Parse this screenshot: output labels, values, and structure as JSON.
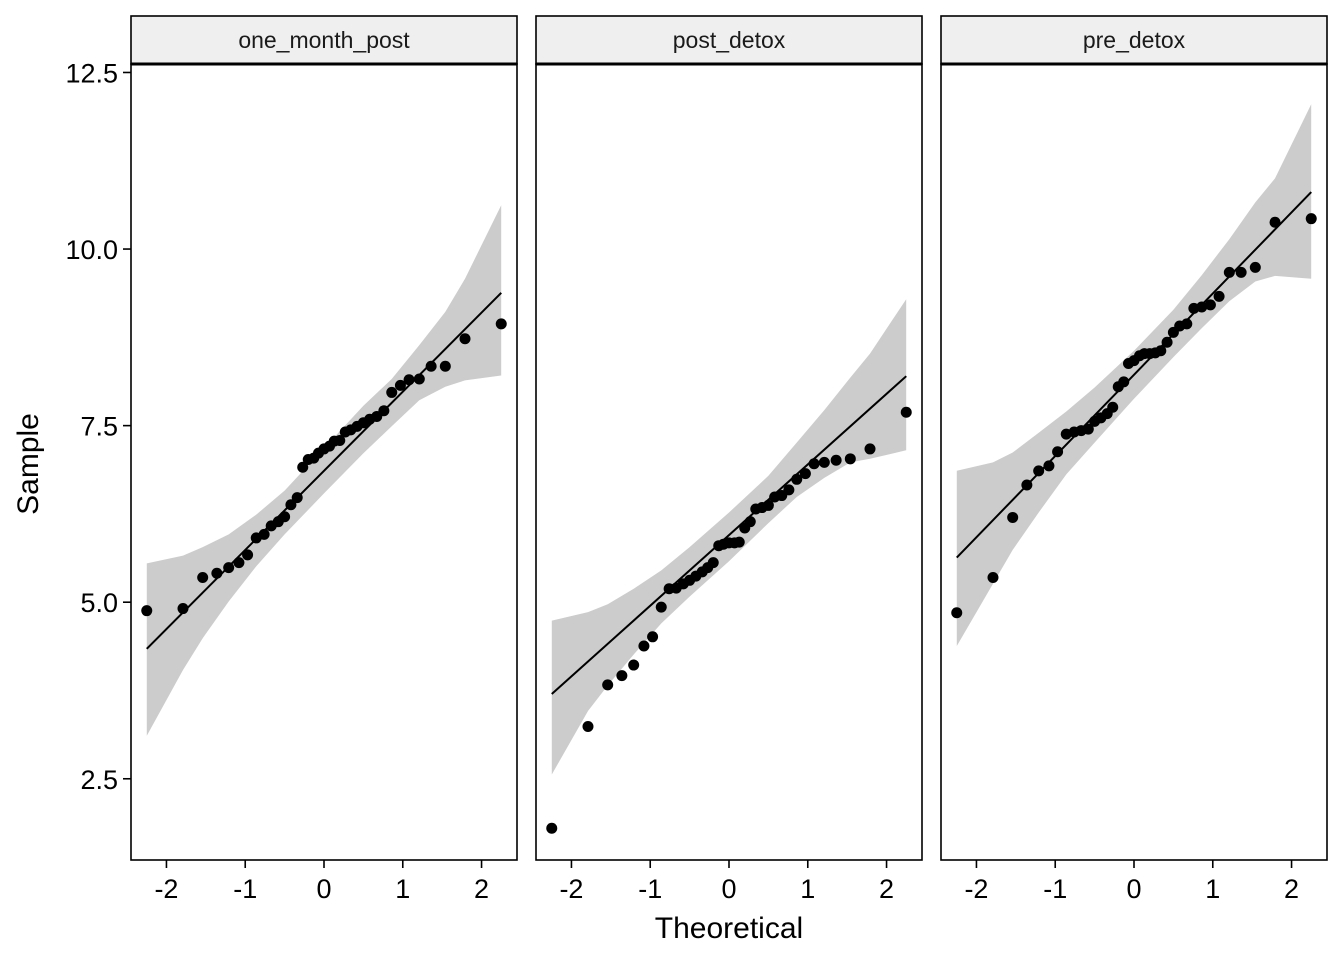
{
  "chart_data": {
    "type": "scatter",
    "kind": "qq-plot",
    "xlabel": "Theoretical",
    "ylabel": "Sample",
    "xlim": [
      -2.45,
      2.45
    ],
    "ylim": [
      1.35,
      12.62
    ],
    "x_ticks": [
      -2,
      -1,
      0,
      1,
      2
    ],
    "x_tick_labels": [
      "-2",
      "-1",
      "0",
      "1",
      "2"
    ],
    "y_ticks": [
      2.5,
      5.0,
      7.5,
      10.0,
      12.5
    ],
    "y_tick_labels": [
      "2.5",
      "5.0",
      "7.5",
      "10.0",
      "12.5"
    ],
    "grid": false,
    "colors": {
      "points": "#000000",
      "line": "#000000",
      "band": "#cccccc",
      "strip": "#efefef"
    },
    "panels": [
      {
        "name": "one_month_post",
        "points": [
          [
            -2.25,
            4.88
          ],
          [
            -1.79,
            4.91
          ],
          [
            -1.54,
            5.35
          ],
          [
            -1.36,
            5.41
          ],
          [
            -1.21,
            5.49
          ],
          [
            -1.08,
            5.56
          ],
          [
            -0.97,
            5.67
          ],
          [
            -0.86,
            5.91
          ],
          [
            -0.76,
            5.96
          ],
          [
            -0.67,
            6.08
          ],
          [
            -0.58,
            6.14
          ],
          [
            -0.5,
            6.21
          ],
          [
            -0.42,
            6.38
          ],
          [
            -0.34,
            6.48
          ],
          [
            -0.27,
            6.91
          ],
          [
            -0.2,
            7.02
          ],
          [
            -0.13,
            7.04
          ],
          [
            -0.07,
            7.11
          ],
          [
            0.0,
            7.17
          ],
          [
            0.07,
            7.21
          ],
          [
            0.13,
            7.28
          ],
          [
            0.2,
            7.29
          ],
          [
            0.27,
            7.41
          ],
          [
            0.34,
            7.44
          ],
          [
            0.42,
            7.49
          ],
          [
            0.5,
            7.54
          ],
          [
            0.58,
            7.59
          ],
          [
            0.67,
            7.63
          ],
          [
            0.76,
            7.71
          ],
          [
            0.86,
            7.97
          ],
          [
            0.97,
            8.07
          ],
          [
            1.08,
            8.15
          ],
          [
            1.21,
            8.16
          ],
          [
            1.36,
            8.34
          ],
          [
            1.54,
            8.34
          ],
          [
            1.79,
            8.73
          ],
          [
            2.25,
            8.94
          ]
        ],
        "line": {
          "intercept": 6.86,
          "slope": 1.12
        },
        "band": {
          "x": [
            -2.25,
            -1.79,
            -1.54,
            -1.21,
            -0.86,
            -0.5,
            0,
            0.5,
            0.86,
            1.21,
            1.54,
            1.79,
            2.25
          ],
          "lower": [
            3.11,
            4.04,
            4.49,
            5.01,
            5.51,
            5.96,
            6.54,
            7.11,
            7.49,
            7.86,
            8.05,
            8.14,
            8.21
          ],
          "upper": [
            5.55,
            5.66,
            5.78,
            5.96,
            6.24,
            6.58,
            7.18,
            7.78,
            8.16,
            8.64,
            9.11,
            9.58,
            10.62
          ]
        }
      },
      {
        "name": "post_detox",
        "points": [
          [
            -2.25,
            1.8
          ],
          [
            -1.79,
            3.24
          ],
          [
            -1.54,
            3.83
          ],
          [
            -1.36,
            3.96
          ],
          [
            -1.21,
            4.11
          ],
          [
            -1.08,
            4.38
          ],
          [
            -0.97,
            4.51
          ],
          [
            -0.86,
            4.93
          ],
          [
            -0.76,
            5.19
          ],
          [
            -0.67,
            5.2
          ],
          [
            -0.58,
            5.26
          ],
          [
            -0.5,
            5.31
          ],
          [
            -0.42,
            5.37
          ],
          [
            -0.34,
            5.43
          ],
          [
            -0.27,
            5.49
          ],
          [
            -0.2,
            5.56
          ],
          [
            -0.13,
            5.8
          ],
          [
            -0.07,
            5.82
          ],
          [
            0.0,
            5.84
          ],
          [
            0.07,
            5.84
          ],
          [
            0.13,
            5.85
          ],
          [
            0.2,
            6.05
          ],
          [
            0.27,
            6.14
          ],
          [
            0.34,
            6.32
          ],
          [
            0.42,
            6.34
          ],
          [
            0.5,
            6.37
          ],
          [
            0.58,
            6.49
          ],
          [
            0.67,
            6.51
          ],
          [
            0.76,
            6.59
          ],
          [
            0.86,
            6.74
          ],
          [
            0.97,
            6.82
          ],
          [
            1.08,
            6.96
          ],
          [
            1.21,
            6.98
          ],
          [
            1.36,
            7.01
          ],
          [
            1.54,
            7.03
          ],
          [
            1.79,
            7.17
          ],
          [
            2.25,
            7.69
          ]
        ],
        "line": {
          "intercept": 5.95,
          "slope": 1.0
        },
        "band": {
          "x": [
            -2.25,
            -1.79,
            -1.54,
            -1.21,
            -0.86,
            -0.5,
            0,
            0.5,
            0.86,
            1.21,
            1.54,
            1.79,
            2.25
          ],
          "lower": [
            2.56,
            3.46,
            3.82,
            4.26,
            4.7,
            5.08,
            5.58,
            6.12,
            6.49,
            6.76,
            6.98,
            7.03,
            7.15
          ],
          "upper": [
            4.74,
            4.86,
            4.97,
            5.19,
            5.45,
            5.78,
            6.27,
            6.79,
            7.26,
            7.72,
            8.18,
            8.52,
            9.29
          ]
        }
      },
      {
        "name": "pre_detox",
        "points": [
          [
            -2.25,
            4.85
          ],
          [
            -1.79,
            5.35
          ],
          [
            -1.54,
            6.2
          ],
          [
            -1.36,
            6.66
          ],
          [
            -1.21,
            6.86
          ],
          [
            -1.08,
            6.93
          ],
          [
            -0.97,
            7.13
          ],
          [
            -0.86,
            7.38
          ],
          [
            -0.76,
            7.41
          ],
          [
            -0.67,
            7.43
          ],
          [
            -0.58,
            7.45
          ],
          [
            -0.5,
            7.56
          ],
          [
            -0.42,
            7.61
          ],
          [
            -0.34,
            7.67
          ],
          [
            -0.27,
            7.76
          ],
          [
            -0.2,
            8.05
          ],
          [
            -0.13,
            8.12
          ],
          [
            -0.07,
            8.38
          ],
          [
            0.0,
            8.42
          ],
          [
            0.07,
            8.49
          ],
          [
            0.13,
            8.52
          ],
          [
            0.2,
            8.52
          ],
          [
            0.27,
            8.53
          ],
          [
            0.34,
            8.56
          ],
          [
            0.42,
            8.68
          ],
          [
            0.5,
            8.82
          ],
          [
            0.58,
            8.91
          ],
          [
            0.67,
            8.94
          ],
          [
            0.76,
            9.16
          ],
          [
            0.86,
            9.18
          ],
          [
            0.97,
            9.21
          ],
          [
            1.08,
            9.33
          ],
          [
            1.21,
            9.67
          ],
          [
            1.36,
            9.67
          ],
          [
            1.54,
            9.74
          ],
          [
            1.79,
            10.38
          ],
          [
            2.25,
            10.43
          ]
        ],
        "line": {
          "intercept": 8.22,
          "slope": 1.15
        },
        "band": {
          "x": [
            -2.25,
            -1.79,
            -1.54,
            -1.21,
            -0.86,
            -0.5,
            0,
            0.5,
            0.86,
            1.21,
            1.54,
            1.79,
            2.25
          ],
          "lower": [
            4.38,
            5.26,
            5.74,
            6.27,
            6.81,
            7.26,
            7.88,
            8.47,
            8.88,
            9.26,
            9.54,
            9.62,
            9.58
          ],
          "upper": [
            6.86,
            6.98,
            7.12,
            7.4,
            7.7,
            8.04,
            8.56,
            9.14,
            9.63,
            10.14,
            10.66,
            11.0,
            12.05
          ]
        }
      }
    ]
  }
}
